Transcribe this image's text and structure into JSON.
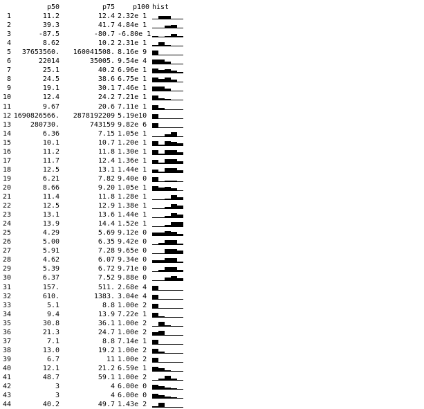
{
  "header": {
    "p50": "p50",
    "p75": "p75",
    "p100": "p100",
    "hist": "hist"
  },
  "rows": [
    {
      "i": "1",
      "p50": "11.2",
      "p75": "12.4",
      "p100": "2.32e 1",
      "hist": [
        0.1,
        0.5,
        0.6,
        0.1,
        0.1
      ]
    },
    {
      "i": "2",
      "p50": "39.3",
      "p75": "41.7",
      "p100": "4.84e 1",
      "hist": [
        0.1,
        0.1,
        0.4,
        0.6,
        0.1
      ]
    },
    {
      "i": "3",
      "p50": "-87.5",
      "p75": "-80.7",
      "p100": "-6.80e 1",
      "hist": [
        0.2,
        0.1,
        0.2,
        0.6,
        0.2
      ]
    },
    {
      "i": "4",
      "p50": "8.62",
      "p75": "10.2",
      "p100": "2.31e 1",
      "hist": [
        0.2,
        0.7,
        0.2,
        0.1,
        0.1
      ]
    },
    {
      "i": "5",
      "p50": "37653560.",
      "p75": "160041508.",
      "p100": "8.16e 9",
      "hist": [
        0.8,
        0.1,
        0.1,
        0.1,
        0.1
      ]
    },
    {
      "i": "6",
      "p50": "22014",
      "p75": "35005.",
      "p100": "9.54e 4",
      "hist": [
        0.8,
        0.8,
        0.4,
        0.1,
        0.1
      ]
    },
    {
      "i": "7",
      "p50": "25.1",
      "p75": "40.2",
      "p100": "6.96e 1",
      "hist": [
        0.8,
        0.5,
        0.7,
        0.4,
        0.2
      ]
    },
    {
      "i": "8",
      "p50": "24.5",
      "p75": "38.6",
      "p100": "6.75e 1",
      "hist": [
        0.8,
        0.5,
        0.8,
        0.4,
        0.1
      ]
    },
    {
      "i": "9",
      "p50": "19.1",
      "p75": "30.1",
      "p100": "7.46e 1",
      "hist": [
        0.8,
        0.8,
        0.4,
        0.1,
        0.1
      ]
    },
    {
      "i": "10",
      "p50": "12.4",
      "p75": "24.2",
      "p100": "7.21e 1",
      "hist": [
        0.8,
        0.3,
        0.2,
        0.1,
        0.1
      ]
    },
    {
      "i": "11",
      "p50": "9.67",
      "p75": "20.6",
      "p100": "7.11e 1",
      "hist": [
        0.8,
        0.3,
        0.1,
        0.1,
        0.1
      ]
    },
    {
      "i": "12",
      "p50": "1690826566.",
      "p75": "2878192209",
      "p100": "5.19e10",
      "hist": [
        0.8,
        0.1,
        0.1,
        0.1,
        0.1
      ]
    },
    {
      "i": "13",
      "p50": "280730.",
      "p75": "743159",
      "p100": "9.82e 6",
      "hist": [
        0.8,
        0.1,
        0.1,
        0.1,
        0.1
      ]
    },
    {
      "i": "14",
      "p50": "6.36",
      "p75": "7.15",
      "p100": "1.05e 1",
      "hist": [
        0.1,
        0.1,
        0.4,
        0.8,
        0.1
      ]
    },
    {
      "i": "15",
      "p50": "10.1",
      "p75": "10.7",
      "p100": "1.20e 1",
      "hist": [
        0.8,
        0.2,
        0.8,
        0.7,
        0.4
      ]
    },
    {
      "i": "16",
      "p50": "11.2",
      "p75": "11.8",
      "p100": "1.30e 1",
      "hist": [
        0.8,
        0.2,
        0.8,
        0.8,
        0.4
      ]
    },
    {
      "i": "17",
      "p50": "11.7",
      "p75": "12.4",
      "p100": "1.36e 1",
      "hist": [
        0.7,
        0.2,
        0.8,
        0.8,
        0.4
      ]
    },
    {
      "i": "18",
      "p50": "12.5",
      "p75": "13.1",
      "p100": "1.44e 1",
      "hist": [
        0.6,
        0.2,
        0.8,
        0.8,
        0.4
      ]
    },
    {
      "i": "19",
      "p50": "6.21",
      "p75": "7.82",
      "p100": "9.40e 0",
      "hist": [
        0.8,
        0.1,
        0.2,
        0.2,
        0.1
      ]
    },
    {
      "i": "20",
      "p50": "8.66",
      "p75": "9.20",
      "p100": "1.05e 1",
      "hist": [
        0.8,
        0.5,
        0.7,
        0.4,
        0.1
      ]
    },
    {
      "i": "21",
      "p50": "11.4",
      "p75": "11.8",
      "p100": "1.28e 1",
      "hist": [
        0.1,
        0.1,
        0.2,
        0.8,
        0.4
      ]
    },
    {
      "i": "22",
      "p50": "12.5",
      "p75": "12.9",
      "p100": "1.38e 1",
      "hist": [
        0.1,
        0.1,
        0.3,
        0.8,
        0.6
      ]
    },
    {
      "i": "23",
      "p50": "13.1",
      "p75": "13.6",
      "p100": "1.44e 1",
      "hist": [
        0.1,
        0.1,
        0.3,
        0.8,
        0.6
      ]
    },
    {
      "i": "24",
      "p50": "13.9",
      "p75": "14.4",
      "p100": "1.52e 1",
      "hist": [
        0.1,
        0.1,
        0.3,
        0.8,
        0.8
      ]
    },
    {
      "i": "25",
      "p50": "4.29",
      "p75": "5.69",
      "p100": "9.12e 0",
      "hist": [
        0.5,
        0.6,
        0.8,
        0.7,
        0.3
      ]
    },
    {
      "i": "26",
      "p50": "5.00",
      "p75": "6.35",
      "p100": "9.42e 0",
      "hist": [
        0.1,
        0.3,
        0.8,
        0.8,
        0.2
      ]
    },
    {
      "i": "27",
      "p50": "5.91",
      "p75": "7.28",
      "p100": "9.65e 0",
      "hist": [
        0.1,
        0.1,
        0.8,
        0.8,
        0.6
      ]
    },
    {
      "i": "28",
      "p50": "4.62",
      "p75": "6.07",
      "p100": "9.34e 0",
      "hist": [
        0.4,
        0.4,
        0.8,
        0.8,
        0.2
      ]
    },
    {
      "i": "29",
      "p50": "5.39",
      "p75": "6.72",
      "p100": "9.71e 0",
      "hist": [
        0.1,
        0.3,
        0.8,
        0.8,
        0.3
      ]
    },
    {
      "i": "30",
      "p50": "6.37",
      "p75": "7.52",
      "p100": "9.88e 0",
      "hist": [
        0.1,
        0.1,
        0.5,
        0.8,
        0.4
      ]
    },
    {
      "i": "31",
      "p50": "157.",
      "p75": "511.",
      "p100": "2.68e 4",
      "hist": [
        0.8,
        0.1,
        0.1,
        0.1,
        0.1
      ]
    },
    {
      "i": "32",
      "p50": "610.",
      "p75": "1383.",
      "p100": "3.04e 4",
      "hist": [
        0.8,
        0.1,
        0.1,
        0.1,
        0.1
      ]
    },
    {
      "i": "33",
      "p50": "5.1",
      "p75": "8.8",
      "p100": "1.00e 2",
      "hist": [
        0.8,
        0.1,
        0.1,
        0.1,
        0.1
      ]
    },
    {
      "i": "34",
      "p50": "9.4",
      "p75": "13.9",
      "p100": "7.22e 1",
      "hist": [
        0.8,
        0.2,
        0.1,
        0.1,
        0.1
      ]
    },
    {
      "i": "35",
      "p50": "30.8",
      "p75": "36.1",
      "p100": "1.00e 2",
      "hist": [
        0.1,
        0.8,
        0.2,
        0.1,
        0.1
      ]
    },
    {
      "i": "36",
      "p50": "21.3",
      "p75": "24.7",
      "p100": "1.00e 2",
      "hist": [
        0.6,
        0.8,
        0.1,
        0.1,
        0.1
      ]
    },
    {
      "i": "37",
      "p50": "7.1",
      "p75": "8.8",
      "p100": "7.14e 1",
      "hist": [
        0.8,
        0.1,
        0.1,
        0.1,
        0.1
      ]
    },
    {
      "i": "38",
      "p50": "13.0",
      "p75": "19.2",
      "p100": "1.00e 2",
      "hist": [
        0.8,
        0.3,
        0.1,
        0.1,
        0.1
      ]
    },
    {
      "i": "39",
      "p50": "6.7",
      "p75": "11",
      "p100": "1.00e 2",
      "hist": [
        0.8,
        0.1,
        0.1,
        0.1,
        0.1
      ]
    },
    {
      "i": "40",
      "p50": "12.1",
      "p75": "21.2",
      "p100": "6.59e 1",
      "hist": [
        0.8,
        0.5,
        0.2,
        0.1,
        0.1
      ]
    },
    {
      "i": "41",
      "p50": "48.7",
      "p75": "59.1",
      "p100": "1.00e 2",
      "hist": [
        0.1,
        0.3,
        0.8,
        0.3,
        0.1
      ]
    },
    {
      "i": "42",
      "p50": "3",
      "p75": "4",
      "p100": "6.00e 0",
      "hist": [
        0.8,
        0.6,
        0.3,
        0.2,
        0.1
      ]
    },
    {
      "i": "43",
      "p50": "3",
      "p75": "4",
      "p100": "6.00e 0",
      "hist": [
        0.8,
        0.6,
        0.3,
        0.2,
        0.1
      ]
    },
    {
      "i": "44",
      "p50": "40.2",
      "p75": "49.7",
      "p100": "1.43e 2",
      "hist": [
        0.2,
        0.8,
        0.1,
        0.1,
        0.1
      ]
    }
  ]
}
